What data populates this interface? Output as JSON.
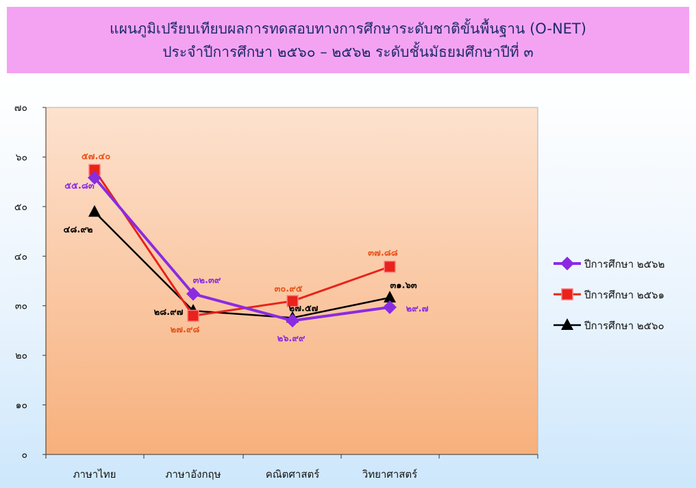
{
  "title": {
    "line1": "แผนภูมิเปรียบเทียบผลการทดสอบทางการศึกษาระดับชาติขั้นพื้นฐาน (O-NET)",
    "line2": "ประจำปีการศึกษา ๒๕๖๐ – ๒๕๖๒ ระดับชั้นมัธยมศึกษาปีที่ ๓"
  },
  "colors": {
    "s2562": "#8a2be2",
    "s2561": "#e8231b",
    "s2560": "#000000",
    "label2561": "#e8531b",
    "plotTop": "#fde2cf",
    "plotBottom": "#f7b07c",
    "title_band": "#f4a3f2"
  },
  "chart_data": {
    "type": "line",
    "categories": [
      "ภาษาไทย",
      "ภาษาอังกฤษ",
      "คณิตศาสตร์",
      "วิทยาศาสตร์"
    ],
    "ylim": [
      0,
      70
    ],
    "yticks": [
      0,
      10,
      20,
      30,
      40,
      50,
      60,
      70
    ],
    "ytick_labels": [
      "๐",
      "๑๐",
      "๒๐",
      "๓๐",
      "๔๐",
      "๕๐",
      "๖๐",
      "๗๐"
    ],
    "grid": false,
    "legend_position": "right",
    "series": [
      {
        "name": "ปีการศึกษา ๒๕๖๒",
        "marker": "diamond",
        "values": [
          55.83,
          32.39,
          26.99,
          29.7
        ],
        "labels": [
          "๕๕.๘๓",
          "๓๒.๓๙",
          "๒๖.๙๙",
          "๒๙.๗"
        ]
      },
      {
        "name": "ปีการศึกษา ๒๕๖๑",
        "marker": "square",
        "values": [
          57.4,
          27.98,
          30.95,
          37.88
        ],
        "labels": [
          "๕๗.๔๐",
          "๒๗.๙๘",
          "๓๐.๙๕",
          "๓๗.๘๘"
        ]
      },
      {
        "name": "ปีการศึกษา ๒๕๖๐",
        "marker": "triangle",
        "values": [
          48.92,
          28.97,
          27.57,
          31.63
        ],
        "labels": [
          "๔๘.๙๒",
          "๒๘.๙๗",
          "๒๗.๕๗",
          "๓๑.๖๓"
        ]
      }
    ]
  }
}
